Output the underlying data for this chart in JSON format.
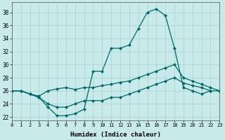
{
  "xlabel": "Humidex (Indice chaleur)",
  "xlim": [
    0,
    23
  ],
  "ylim": [
    21.5,
    39.5
  ],
  "yticks": [
    22,
    24,
    26,
    28,
    30,
    32,
    34,
    36,
    38
  ],
  "xticks": [
    0,
    1,
    2,
    3,
    4,
    5,
    6,
    7,
    8,
    9,
    10,
    11,
    12,
    13,
    14,
    15,
    16,
    17,
    18,
    19,
    20,
    21,
    22,
    23
  ],
  "background_color": "#c8eaea",
  "grid_color": "#b0d4d4",
  "line_color": "#006868",
  "line1_x": [
    0,
    1,
    2,
    3,
    4,
    5,
    6,
    7,
    8,
    9,
    10,
    11,
    12,
    13,
    14,
    15,
    16,
    17,
    18,
    19,
    20,
    21,
    22
  ],
  "line1_y": [
    26.0,
    26.0,
    25.5,
    25.0,
    23.5,
    22.2,
    22.2,
    22.5,
    23.2,
    29.0,
    29.0,
    32.5,
    32.5,
    33.0,
    35.5,
    38.0,
    38.5,
    37.5,
    32.5,
    26.5,
    26.0,
    25.5,
    26.0
  ],
  "line2_x": [
    0,
    1,
    2,
    3,
    4,
    5,
    6,
    7,
    8,
    9,
    10,
    11,
    12,
    13,
    14,
    15,
    16,
    17,
    18,
    19,
    20,
    21,
    22,
    23
  ],
  "line2_y": [
    26.0,
    26.0,
    25.5,
    25.2,
    26.0,
    26.3,
    26.5,
    26.2,
    26.5,
    26.5,
    26.8,
    27.0,
    27.3,
    27.5,
    28.0,
    28.5,
    29.0,
    29.5,
    30.0,
    28.0,
    27.5,
    27.0,
    26.5,
    26.0
  ],
  "line3_x": [
    0,
    1,
    2,
    3,
    4,
    5,
    6,
    7,
    8,
    9,
    10,
    11,
    12,
    13,
    14,
    15,
    16,
    17,
    18,
    19,
    20,
    21,
    22,
    23
  ],
  "line3_y": [
    26.0,
    26.0,
    25.5,
    25.0,
    24.0,
    23.5,
    23.5,
    24.0,
    24.5,
    24.5,
    24.5,
    25.0,
    25.0,
    25.5,
    26.0,
    26.5,
    27.0,
    27.5,
    28.0,
    27.2,
    26.8,
    26.5,
    26.0,
    26.0
  ]
}
